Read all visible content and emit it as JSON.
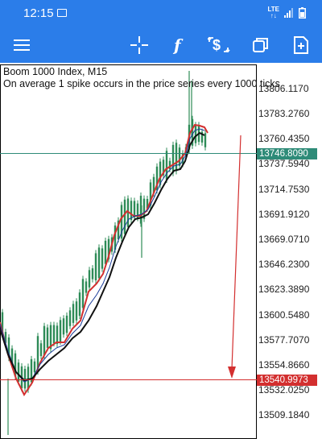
{
  "status_bar": {
    "time": "12:15",
    "network_label": "LTE"
  },
  "toolbar": {
    "icons": [
      "menu-icon",
      "crosshair-icon",
      "indicators-icon",
      "symbols-icon",
      "window-icon",
      "new-order-icon"
    ],
    "accent_color": "#2b7de9"
  },
  "chart": {
    "symbol_line": "Boom 1000 Index, M15",
    "description": "On average 1 spike occurs in the price series every 1000 ticks",
    "price_labels": [
      "13806.1170",
      "13783.2760",
      "13760.4350",
      "13737.5940",
      "13714.7530",
      "13691.9120",
      "13669.0710",
      "13646.2300",
      "13623.3890",
      "13600.5480",
      "13577.7070",
      "13554.8660",
      "13532.0250",
      "13509.1840"
    ],
    "current_price": "13746.8090",
    "current_price_color": "#2e8b78",
    "level_price": "13540.9973",
    "level_price_color": "#d32f2f",
    "trendline_color": "#d32f2f"
  }
}
